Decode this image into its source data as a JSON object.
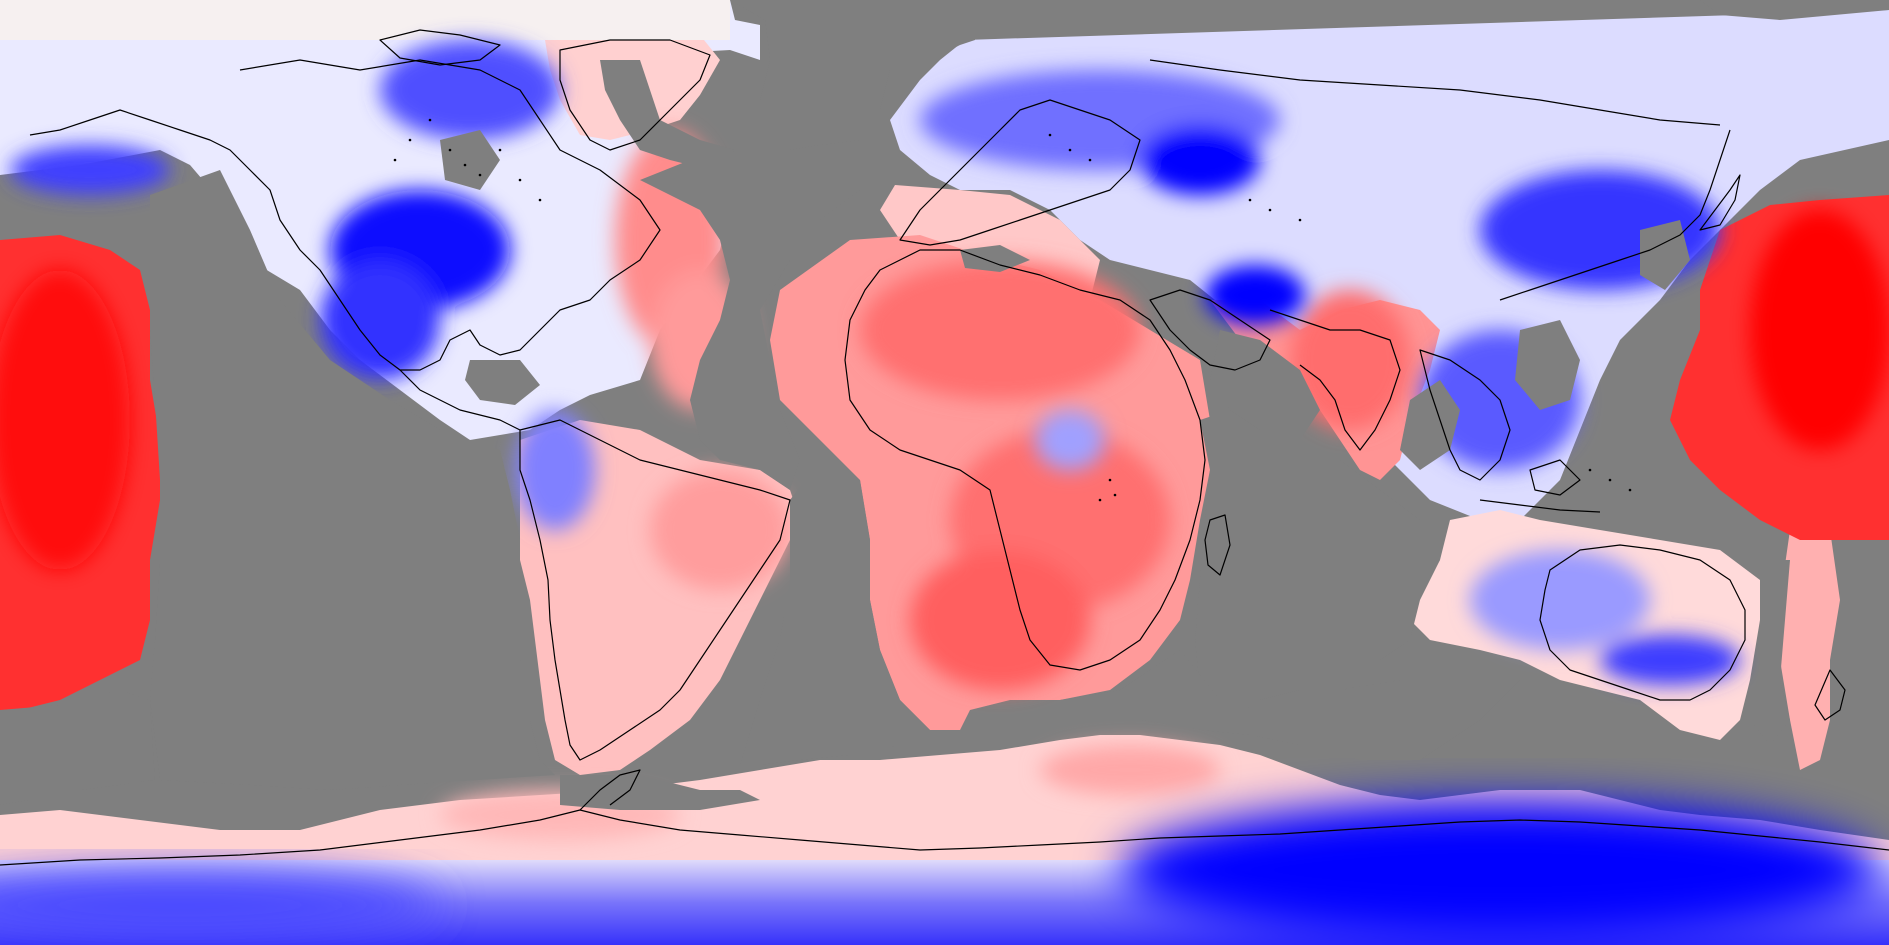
{
  "map": {
    "projection": "equirectangular",
    "colors": {
      "no_data": "#7f7f7f",
      "warm_strong": "#ff0000",
      "warm_medium": "#ff5a5a",
      "warm_light": "#ffb4b4",
      "neutral": "#ffffff",
      "cool_light": "#c8c8ff",
      "cool_medium": "#6060ff",
      "cool_strong": "#0000ff",
      "coastline": "#000000"
    },
    "colorbar": "none",
    "labels": "none"
  }
}
